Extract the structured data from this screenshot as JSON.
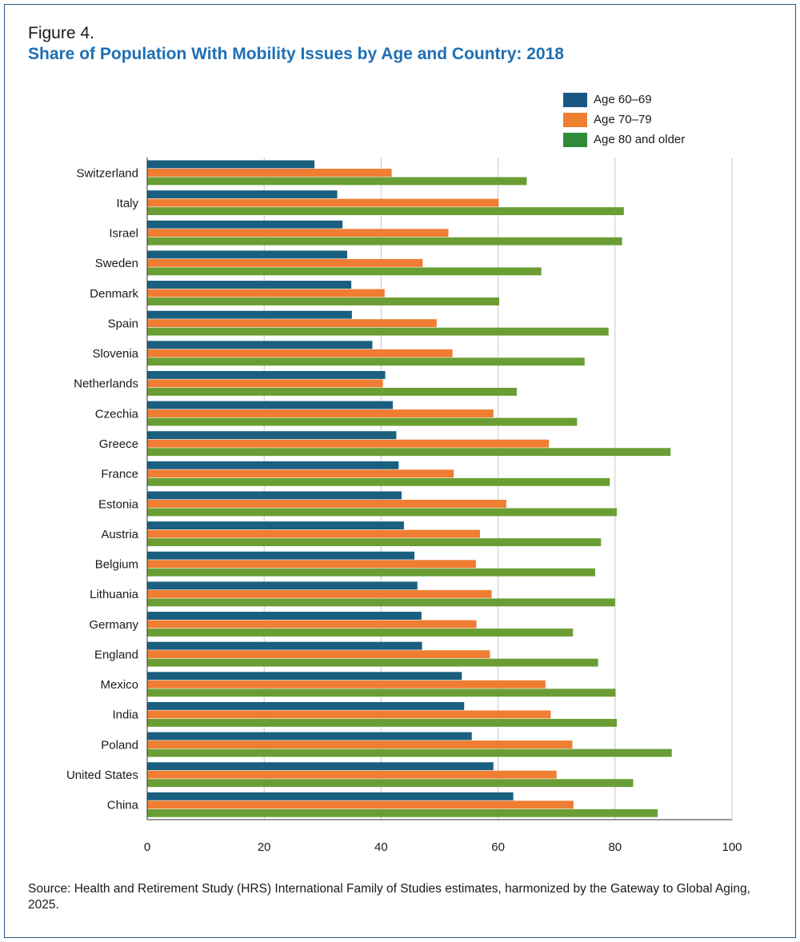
{
  "figure_label": "Figure 4.",
  "title": "Share of Population With Mobility Issues by Age and Country: 2018",
  "source": "Source: Health and Retirement Study (HRS) International Family of Studies estimates, harmonized by the Gateway to Global Aging, 2025.",
  "legend": [
    {
      "label": "Age 60–69",
      "color": "#1a5783"
    },
    {
      "label": "Age 70–79",
      "color": "#ef7d32"
    },
    {
      "label": "Age 80 and older",
      "color": "#2e8b3a"
    }
  ],
  "chart_data": {
    "type": "bar",
    "orientation": "horizontal",
    "categories": [
      "Switzerland",
      "Italy",
      "Israel",
      "Sweden",
      "Denmark",
      "Spain",
      "Slovenia",
      "Netherlands",
      "Czechia",
      "Greece",
      "France",
      "Estonia",
      "Austria",
      "Belgium",
      "Lithuania",
      "Germany",
      "England",
      "Mexico",
      "India",
      "Poland",
      "United States",
      "China"
    ],
    "series": [
      {
        "name": "Age 60–69",
        "color": "#1a5f7f",
        "values": [
          28.6,
          32.5,
          33.4,
          34.2,
          34.9,
          35.0,
          38.5,
          40.7,
          42.0,
          42.6,
          43.0,
          43.5,
          43.9,
          45.7,
          46.2,
          46.9,
          47.0,
          53.8,
          54.2,
          55.5,
          59.2,
          62.6
        ]
      },
      {
        "name": "Age 70–79",
        "color": "#ef7d32",
        "values": [
          41.8,
          60.1,
          51.5,
          47.1,
          40.6,
          49.5,
          52.2,
          40.3,
          59.2,
          68.7,
          52.4,
          61.4,
          56.9,
          56.2,
          58.9,
          56.3,
          58.6,
          68.1,
          69.0,
          72.7,
          70.0,
          72.9
        ]
      },
      {
        "name": "Age 80 and older",
        "color": "#6a9e34",
        "values": [
          64.9,
          81.5,
          81.2,
          67.4,
          60.2,
          78.9,
          74.8,
          63.2,
          73.5,
          89.5,
          79.1,
          80.3,
          77.6,
          76.6,
          80.0,
          72.8,
          77.1,
          80.1,
          80.3,
          89.7,
          83.1,
          87.3
        ]
      }
    ],
    "xlim": [
      0,
      100
    ],
    "xticks": [
      "0",
      "20",
      "40",
      "60",
      "80",
      "100"
    ],
    "grid": true,
    "legend_position": "top-right"
  }
}
